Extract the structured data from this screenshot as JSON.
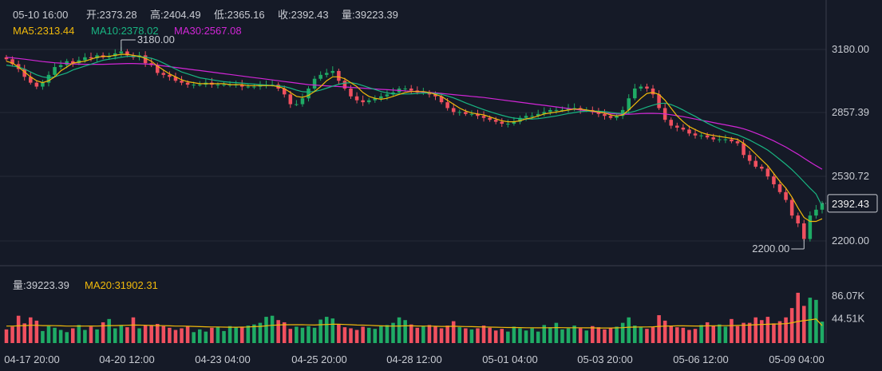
{
  "header": {
    "datetime": "05-10 16:00",
    "open": "开:2373.28",
    "high": "高:2404.49",
    "low": "低:2365.16",
    "close": "收:2392.43",
    "volume": "量:39223.39"
  },
  "ma_legend": [
    {
      "label": "MA5:2313.44",
      "color": "#f0b90b"
    },
    {
      "label": "MA10:2378.02",
      "color": "#18b582"
    },
    {
      "label": "MA30:2567.08",
      "color": "#d126d6"
    }
  ],
  "volume_legend": [
    {
      "label": "量:39223.39",
      "color": "#c9ccd3"
    },
    {
      "label": "MA20:31902.31",
      "color": "#f0b90b"
    }
  ],
  "colors": {
    "up": "#1fab65",
    "down": "#f0505f",
    "ma5": "#f0b90b",
    "ma10": "#18b582",
    "ma30": "#d126d6",
    "vol_ma20": "#f0b90b",
    "price_tag": "#f0f0f0"
  },
  "chart_data": [
    {
      "type": "candlestick",
      "ylim": [
        2090,
        3300
      ],
      "ytick_labels": [
        "3180.00",
        "2857.39",
        "2530.72",
        "2200.00"
      ],
      "yticks": [
        3180.0,
        2857.39,
        2530.72,
        2200.0
      ],
      "current_price_label": "2392.43",
      "current_price": 2392.43,
      "high_marker": {
        "label": "3180.00",
        "value": 3180.0
      },
      "low_marker": {
        "label": "2200.00",
        "value": 2200.0
      },
      "close": [
        3130,
        3105,
        3080,
        3040,
        3010,
        2990,
        3010,
        3050,
        3090,
        3100,
        3120,
        3110,
        3125,
        3140,
        3135,
        3150,
        3140,
        3145,
        3160,
        3170,
        3150,
        3140,
        3150,
        3110,
        3100,
        3060,
        3050,
        3040,
        3020,
        3010,
        3000,
        3000,
        3000,
        3010,
        3000,
        3000,
        3000,
        3000,
        3000,
        2990,
        2990,
        2990,
        3000,
        3000,
        3000,
        2980,
        2950,
        2900,
        2900,
        2930,
        2980,
        3030,
        3050,
        3060,
        3070,
        3020,
        2980,
        2940,
        2920,
        2910,
        2920,
        2930,
        2940,
        2950,
        2960,
        2980,
        2980,
        2970,
        2960,
        2960,
        2950,
        2940,
        2910,
        2880,
        2860,
        2860,
        2850,
        2850,
        2840,
        2830,
        2820,
        2810,
        2800,
        2800,
        2810,
        2830,
        2840,
        2840,
        2850,
        2860,
        2870,
        2870,
        2870,
        2880,
        2880,
        2870,
        2870,
        2860,
        2850,
        2840,
        2830,
        2840,
        2870,
        2930,
        2980,
        2990,
        2980,
        2950,
        2880,
        2820,
        2790,
        2780,
        2770,
        2750,
        2740,
        2740,
        2730,
        2720,
        2720,
        2720,
        2710,
        2700,
        2640,
        2610,
        2580,
        2570,
        2530,
        2490,
        2450,
        2410,
        2330,
        2290,
        2210,
        2330,
        2360,
        2392.43
      ],
      "ma5": [
        3120,
        3110,
        3090,
        3065,
        3040,
        3020,
        3010,
        3020,
        3040,
        3070,
        3090,
        3110,
        3115,
        3120,
        3130,
        3140,
        3145,
        3145,
        3150,
        3155,
        3155,
        3150,
        3145,
        3135,
        3120,
        3095,
        3075,
        3055,
        3040,
        3025,
        3015,
        3010,
        3005,
        3005,
        3005,
        3005,
        3005,
        3000,
        3000,
        3000,
        2995,
        2995,
        2995,
        2995,
        2995,
        2990,
        2980,
        2960,
        2940,
        2935,
        2945,
        2965,
        2990,
        3020,
        3040,
        3040,
        3030,
        3010,
        2990,
        2960,
        2940,
        2930,
        2925,
        2930,
        2940,
        2950,
        2960,
        2965,
        2965,
        2965,
        2960,
        2950,
        2940,
        2920,
        2900,
        2880,
        2865,
        2855,
        2850,
        2845,
        2835,
        2825,
        2815,
        2810,
        2810,
        2815,
        2825,
        2830,
        2840,
        2850,
        2855,
        2860,
        2865,
        2870,
        2875,
        2875,
        2870,
        2865,
        2860,
        2855,
        2845,
        2840,
        2845,
        2870,
        2900,
        2930,
        2955,
        2960,
        2950,
        2920,
        2880,
        2840,
        2810,
        2785,
        2770,
        2755,
        2745,
        2740,
        2735,
        2730,
        2725,
        2720,
        2700,
        2675,
        2645,
        2615,
        2585,
        2545,
        2505,
        2470,
        2425,
        2370,
        2320,
        2300,
        2300,
        2313.44
      ],
      "ma10": [
        3100,
        3095,
        3090,
        3080,
        3065,
        3050,
        3040,
        3035,
        3040,
        3050,
        3060,
        3075,
        3085,
        3095,
        3105,
        3115,
        3125,
        3130,
        3135,
        3140,
        3145,
        3145,
        3145,
        3140,
        3135,
        3125,
        3110,
        3095,
        3080,
        3065,
        3055,
        3045,
        3035,
        3030,
        3025,
        3020,
        3015,
        3012,
        3010,
        3008,
        3005,
        3003,
        3000,
        2998,
        2996,
        2994,
        2990,
        2982,
        2972,
        2964,
        2962,
        2965,
        2972,
        2982,
        2992,
        3002,
        3008,
        3010,
        3005,
        2995,
        2985,
        2975,
        2965,
        2958,
        2953,
        2952,
        2952,
        2953,
        2955,
        2957,
        2957,
        2955,
        2950,
        2942,
        2932,
        2920,
        2907,
        2895,
        2883,
        2872,
        2862,
        2852,
        2843,
        2835,
        2829,
        2826,
        2824,
        2824,
        2826,
        2830,
        2835,
        2840,
        2846,
        2852,
        2857,
        2862,
        2864,
        2865,
        2864,
        2862,
        2858,
        2854,
        2852,
        2856,
        2864,
        2874,
        2885,
        2895,
        2903,
        2905,
        2898,
        2885,
        2870,
        2853,
        2838,
        2820,
        2803,
        2788,
        2775,
        2762,
        2752,
        2743,
        2730,
        2716,
        2700,
        2683,
        2665,
        2642,
        2617,
        2592,
        2565,
        2535,
        2502,
        2470,
        2440,
        2378.02
      ],
      "ma30": [
        3140,
        3137,
        3134,
        3130,
        3126,
        3122,
        3118,
        3115,
        3112,
        3110,
        3108,
        3106,
        3105,
        3104,
        3104,
        3104,
        3104,
        3105,
        3106,
        3107,
        3108,
        3108,
        3107,
        3106,
        3104,
        3100,
        3096,
        3092,
        3088,
        3084,
        3080,
        3076,
        3072,
        3068,
        3064,
        3060,
        3056,
        3052,
        3048,
        3044,
        3040,
        3036,
        3032,
        3028,
        3024,
        3020,
        3016,
        3012,
        3008,
        3004,
        3000,
        2998,
        2996,
        2994,
        2992,
        2990,
        2988,
        2986,
        2984,
        2982,
        2980,
        2978,
        2976,
        2974,
        2972,
        2970,
        2968,
        2966,
        2964,
        2962,
        2960,
        2958,
        2955,
        2952,
        2949,
        2946,
        2943,
        2940,
        2937,
        2934,
        2930,
        2926,
        2922,
        2918,
        2914,
        2910,
        2906,
        2902,
        2898,
        2894,
        2890,
        2886,
        2882,
        2878,
        2874,
        2870,
        2866,
        2862,
        2858,
        2855,
        2852,
        2850,
        2849,
        2849,
        2850,
        2852,
        2853,
        2853,
        2852,
        2850,
        2846,
        2841,
        2836,
        2830,
        2824,
        2818,
        2812,
        2806,
        2800,
        2794,
        2788,
        2782,
        2774,
        2764,
        2752,
        2740,
        2726,
        2712,
        2696,
        2680,
        2662,
        2644,
        2624,
        2604,
        2585,
        2567.08
      ]
    },
    {
      "type": "bar",
      "ytick_labels": [
        "86.07K",
        "44.51K"
      ],
      "yticks": [
        86070,
        44510
      ],
      "ylim": [
        0,
        101000
      ],
      "values": [
        25000,
        30000,
        50000,
        36000,
        47000,
        41000,
        22000,
        31000,
        28000,
        24000,
        20000,
        27000,
        33000,
        24000,
        30000,
        25000,
        38000,
        44000,
        27000,
        33000,
        29000,
        47000,
        27000,
        33000,
        32000,
        35000,
        31000,
        28000,
        24000,
        27000,
        31000,
        20000,
        25000,
        21000,
        28000,
        30000,
        22000,
        31000,
        29000,
        30000,
        32000,
        34000,
        37000,
        48000,
        50000,
        42000,
        38000,
        26000,
        30000,
        28000,
        31000,
        28000,
        43000,
        48000,
        45000,
        34000,
        29000,
        27000,
        24000,
        30000,
        28000,
        26000,
        31000,
        33000,
        37000,
        47000,
        42000,
        34000,
        28000,
        31000,
        33000,
        30000,
        27000,
        32000,
        40000,
        29000,
        27000,
        25000,
        27000,
        32000,
        28000,
        23000,
        26000,
        21000,
        30000,
        27000,
        23000,
        27000,
        21000,
        33000,
        29000,
        37000,
        25000,
        27000,
        32000,
        27000,
        23000,
        31000,
        29000,
        25000,
        27000,
        30000,
        37000,
        47000,
        32000,
        30000,
        26000,
        29000,
        51000,
        41000,
        32000,
        29000,
        28000,
        24000,
        26000,
        33000,
        38000,
        32000,
        34000,
        30000,
        44000,
        31000,
        37000,
        37000,
        47000,
        42000,
        48000,
        36000,
        40000,
        47000,
        64000,
        92000,
        68000,
        83000,
        79000,
        39223.39
      ],
      "ma20": [
        31000,
        31000,
        31500,
        32000,
        32500,
        32500,
        32000,
        32000,
        31800,
        31500,
        31000,
        31000,
        31200,
        31000,
        31200,
        31000,
        31500,
        32000,
        32000,
        32200,
        32500,
        33000,
        32800,
        32500,
        32200,
        32000,
        31800,
        31500,
        31000,
        31000,
        30800,
        30500,
        30000,
        29800,
        29500,
        29500,
        29200,
        29000,
        29000,
        29200,
        29500,
        30000,
        30500,
        31500,
        32500,
        33000,
        33500,
        33500,
        33500,
        33500,
        33300,
        33000,
        33500,
        34000,
        34500,
        34500,
        34000,
        33500,
        33000,
        32800,
        32500,
        32000,
        31500,
        31200,
        31000,
        31200,
        31500,
        31500,
        31200,
        31000,
        31000,
        30800,
        30500,
        30500,
        30800,
        30500,
        30200,
        30000,
        29800,
        29500,
        29200,
        29000,
        28800,
        28500,
        28500,
        28300,
        28000,
        28000,
        27800,
        28000,
        28000,
        28300,
        28200,
        28000,
        28000,
        28000,
        27800,
        27800,
        27600,
        27500,
        27500,
        27800,
        28200,
        29000,
        29200,
        29400,
        29500,
        29800,
        30500,
        31000,
        31200,
        31500,
        31500,
        31300,
        31200,
        31200,
        31500,
        31500,
        31800,
        31800,
        32000,
        32200,
        32500,
        33000,
        33500,
        34000,
        34500,
        34800,
        35000,
        35500,
        37000,
        39500,
        41000,
        42500,
        44000,
        31902.31
      ]
    }
  ],
  "x_axis_labels": [
    "04-17 20:00",
    "04-20 12:00",
    "04-23 04:00",
    "04-25 20:00",
    "04-28 12:00",
    "05-01 04:00",
    "05-03 20:00",
    "05-06 12:00",
    "05-09 04:00"
  ]
}
